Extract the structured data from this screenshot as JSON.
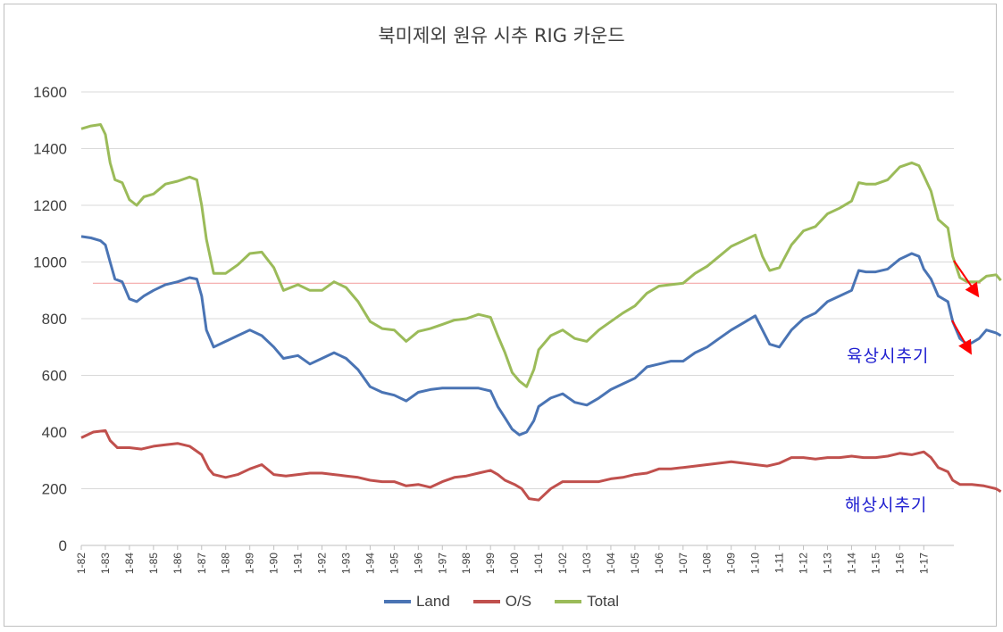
{
  "chart_data": {
    "type": "line",
    "title": "북미제외  원유 시추 RIG 카운드",
    "xlabel": "",
    "ylabel": "",
    "ylim": [
      0,
      1600
    ],
    "yticks": [
      "0",
      "200",
      "400",
      "600",
      "800",
      "1000",
      "1200",
      "1400",
      "1600"
    ],
    "categories": [
      "1-82",
      "1-83",
      "1-84",
      "1-85",
      "1-86",
      "1-87",
      "1-88",
      "1-89",
      "1-90",
      "1-91",
      "1-92",
      "1-93",
      "1-94",
      "1-95",
      "1-96",
      "1-97",
      "1-98",
      "1-99",
      "1-00",
      "1-01",
      "1-02",
      "1-03",
      "1-04",
      "1-05",
      "1-06",
      "1-07",
      "1-08",
      "1-09",
      "1-10",
      "1-11",
      "1-12",
      "1-13",
      "1-14",
      "1-15",
      "1-16",
      "1-17"
    ],
    "grid": "horizontal",
    "legend_position": "bottom",
    "reference_line": 925,
    "series": [
      {
        "name": "Land",
        "color": "#4a74b4",
        "points": [
          [
            0,
            1090
          ],
          [
            0.4,
            1085
          ],
          [
            0.8,
            1075
          ],
          [
            1,
            1060
          ],
          [
            1.2,
            1000
          ],
          [
            1.4,
            940
          ],
          [
            1.7,
            930
          ],
          [
            2,
            870
          ],
          [
            2.3,
            860
          ],
          [
            2.6,
            880
          ],
          [
            3,
            900
          ],
          [
            3.5,
            920
          ],
          [
            4,
            930
          ],
          [
            4.5,
            945
          ],
          [
            4.8,
            940
          ],
          [
            5,
            880
          ],
          [
            5.2,
            760
          ],
          [
            5.5,
            700
          ],
          [
            6,
            720
          ],
          [
            6.5,
            740
          ],
          [
            7,
            760
          ],
          [
            7.5,
            740
          ],
          [
            8,
            700
          ],
          [
            8.4,
            660
          ],
          [
            9,
            670
          ],
          [
            9.5,
            640
          ],
          [
            10,
            660
          ],
          [
            10.5,
            680
          ],
          [
            11,
            660
          ],
          [
            11.5,
            620
          ],
          [
            12,
            560
          ],
          [
            12.5,
            540
          ],
          [
            13,
            530
          ],
          [
            13.5,
            510
          ],
          [
            14,
            540
          ],
          [
            14.5,
            550
          ],
          [
            15,
            555
          ],
          [
            15.5,
            555
          ],
          [
            16,
            555
          ],
          [
            16.5,
            555
          ],
          [
            17,
            545
          ],
          [
            17.3,
            490
          ],
          [
            17.6,
            450
          ],
          [
            17.9,
            410
          ],
          [
            18.2,
            390
          ],
          [
            18.5,
            400
          ],
          [
            18.8,
            440
          ],
          [
            19,
            490
          ],
          [
            19.5,
            520
          ],
          [
            20,
            535
          ],
          [
            20.5,
            505
          ],
          [
            21,
            495
          ],
          [
            21.5,
            520
          ],
          [
            22,
            550
          ],
          [
            22.5,
            570
          ],
          [
            23,
            590
          ],
          [
            23.5,
            630
          ],
          [
            24,
            640
          ],
          [
            24.5,
            650
          ],
          [
            25,
            650
          ],
          [
            25.5,
            680
          ],
          [
            26,
            700
          ],
          [
            26.5,
            730
          ],
          [
            27,
            760
          ],
          [
            27.5,
            785
          ],
          [
            28,
            810
          ],
          [
            28.3,
            760
          ],
          [
            28.6,
            710
          ],
          [
            29,
            700
          ],
          [
            29.5,
            760
          ],
          [
            30,
            800
          ],
          [
            30.5,
            820
          ],
          [
            31,
            860
          ],
          [
            31.5,
            880
          ],
          [
            32,
            900
          ],
          [
            32.3,
            970
          ],
          [
            32.6,
            965
          ],
          [
            33,
            965
          ],
          [
            33.5,
            975
          ],
          [
            34,
            1010
          ],
          [
            34.5,
            1030
          ],
          [
            34.8,
            1020
          ],
          [
            35,
            975
          ],
          [
            35.3,
            940
          ],
          [
            35.6,
            880
          ],
          [
            36,
            860
          ],
          [
            36.2,
            790
          ],
          [
            36.5,
            730
          ],
          [
            36.8,
            710
          ],
          [
            37,
            715
          ],
          [
            37.3,
            730
          ],
          [
            37.6,
            760
          ],
          [
            38,
            750
          ],
          [
            38.2,
            740
          ]
        ]
      },
      {
        "name": "O/S",
        "color": "#c0504d",
        "points": [
          [
            0,
            380
          ],
          [
            0.5,
            400
          ],
          [
            1,
            405
          ],
          [
            1.2,
            370
          ],
          [
            1.5,
            345
          ],
          [
            2,
            345
          ],
          [
            2.5,
            340
          ],
          [
            3,
            350
          ],
          [
            3.5,
            355
          ],
          [
            4,
            360
          ],
          [
            4.5,
            350
          ],
          [
            5,
            320
          ],
          [
            5.3,
            270
          ],
          [
            5.5,
            250
          ],
          [
            6,
            240
          ],
          [
            6.5,
            250
          ],
          [
            7,
            270
          ],
          [
            7.5,
            285
          ],
          [
            8,
            250
          ],
          [
            8.5,
            245
          ],
          [
            9,
            250
          ],
          [
            9.5,
            255
          ],
          [
            10,
            255
          ],
          [
            10.5,
            250
          ],
          [
            11,
            245
          ],
          [
            11.5,
            240
          ],
          [
            12,
            230
          ],
          [
            12.5,
            225
          ],
          [
            13,
            225
          ],
          [
            13.5,
            210
          ],
          [
            14,
            215
          ],
          [
            14.5,
            205
          ],
          [
            15,
            225
          ],
          [
            15.5,
            240
          ],
          [
            16,
            245
          ],
          [
            16.5,
            255
          ],
          [
            17,
            265
          ],
          [
            17.3,
            250
          ],
          [
            17.6,
            230
          ],
          [
            18,
            215
          ],
          [
            18.3,
            200
          ],
          [
            18.6,
            165
          ],
          [
            19,
            160
          ],
          [
            19.5,
            200
          ],
          [
            20,
            225
          ],
          [
            20.5,
            225
          ],
          [
            21,
            225
          ],
          [
            21.5,
            225
          ],
          [
            22,
            235
          ],
          [
            22.5,
            240
          ],
          [
            23,
            250
          ],
          [
            23.5,
            255
          ],
          [
            24,
            270
          ],
          [
            24.5,
            270
          ],
          [
            25,
            275
          ],
          [
            25.5,
            280
          ],
          [
            26,
            285
          ],
          [
            26.5,
            290
          ],
          [
            27,
            295
          ],
          [
            27.5,
            290
          ],
          [
            28,
            285
          ],
          [
            28.5,
            280
          ],
          [
            29,
            290
          ],
          [
            29.5,
            310
          ],
          [
            30,
            310
          ],
          [
            30.5,
            305
          ],
          [
            31,
            310
          ],
          [
            31.5,
            310
          ],
          [
            32,
            315
          ],
          [
            32.5,
            310
          ],
          [
            33,
            310
          ],
          [
            33.5,
            315
          ],
          [
            34,
            325
          ],
          [
            34.5,
            320
          ],
          [
            35,
            330
          ],
          [
            35.3,
            310
          ],
          [
            35.6,
            275
          ],
          [
            36,
            260
          ],
          [
            36.2,
            230
          ],
          [
            36.5,
            215
          ],
          [
            37,
            215
          ],
          [
            37.5,
            210
          ],
          [
            38,
            200
          ],
          [
            38.2,
            190
          ]
        ]
      },
      {
        "name": "Total",
        "color": "#9bbb59",
        "points": [
          [
            0,
            1470
          ],
          [
            0.4,
            1480
          ],
          [
            0.8,
            1485
          ],
          [
            1,
            1450
          ],
          [
            1.2,
            1350
          ],
          [
            1.4,
            1290
          ],
          [
            1.7,
            1280
          ],
          [
            2,
            1220
          ],
          [
            2.3,
            1200
          ],
          [
            2.6,
            1230
          ],
          [
            3,
            1240
          ],
          [
            3.5,
            1275
          ],
          [
            4,
            1285
          ],
          [
            4.5,
            1300
          ],
          [
            4.8,
            1290
          ],
          [
            5,
            1200
          ],
          [
            5.2,
            1080
          ],
          [
            5.5,
            960
          ],
          [
            6,
            960
          ],
          [
            6.5,
            990
          ],
          [
            7,
            1030
          ],
          [
            7.5,
            1035
          ],
          [
            8,
            980
          ],
          [
            8.4,
            900
          ],
          [
            9,
            920
          ],
          [
            9.5,
            900
          ],
          [
            10,
            900
          ],
          [
            10.5,
            930
          ],
          [
            11,
            910
          ],
          [
            11.5,
            860
          ],
          [
            12,
            790
          ],
          [
            12.5,
            765
          ],
          [
            13,
            760
          ],
          [
            13.5,
            720
          ],
          [
            14,
            755
          ],
          [
            14.5,
            765
          ],
          [
            15,
            780
          ],
          [
            15.5,
            795
          ],
          [
            16,
            800
          ],
          [
            16.5,
            815
          ],
          [
            17,
            805
          ],
          [
            17.3,
            740
          ],
          [
            17.6,
            680
          ],
          [
            17.9,
            610
          ],
          [
            18.2,
            580
          ],
          [
            18.5,
            560
          ],
          [
            18.8,
            620
          ],
          [
            19,
            690
          ],
          [
            19.5,
            740
          ],
          [
            20,
            760
          ],
          [
            20.5,
            730
          ],
          [
            21,
            720
          ],
          [
            21.5,
            760
          ],
          [
            22,
            790
          ],
          [
            22.5,
            820
          ],
          [
            23,
            845
          ],
          [
            23.5,
            890
          ],
          [
            24,
            915
          ],
          [
            24.5,
            920
          ],
          [
            25,
            925
          ],
          [
            25.5,
            960
          ],
          [
            26,
            985
          ],
          [
            26.5,
            1020
          ],
          [
            27,
            1055
          ],
          [
            27.5,
            1075
          ],
          [
            28,
            1095
          ],
          [
            28.3,
            1020
          ],
          [
            28.6,
            970
          ],
          [
            29,
            980
          ],
          [
            29.5,
            1060
          ],
          [
            30,
            1110
          ],
          [
            30.5,
            1125
          ],
          [
            31,
            1170
          ],
          [
            31.5,
            1190
          ],
          [
            32,
            1215
          ],
          [
            32.3,
            1280
          ],
          [
            32.6,
            1275
          ],
          [
            33,
            1275
          ],
          [
            33.5,
            1290
          ],
          [
            34,
            1335
          ],
          [
            34.5,
            1350
          ],
          [
            34.8,
            1340
          ],
          [
            35,
            1305
          ],
          [
            35.3,
            1250
          ],
          [
            35.6,
            1150
          ],
          [
            36,
            1120
          ],
          [
            36.2,
            1020
          ],
          [
            36.5,
            945
          ],
          [
            36.8,
            930
          ],
          [
            37,
            930
          ],
          [
            37.3,
            930
          ],
          [
            37.6,
            950
          ],
          [
            38,
            955
          ],
          [
            38.2,
            935
          ]
        ]
      }
    ],
    "annotations": [
      {
        "text": "육상시추기",
        "color": "#2020d0"
      },
      {
        "text": "해상시추기",
        "color": "#2020d0"
      }
    ]
  }
}
